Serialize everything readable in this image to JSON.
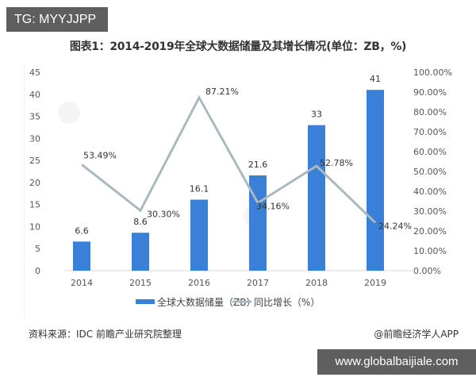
{
  "badges": {
    "top_left": "TG: MYYJJPP",
    "bottom_right": "www.globalbaijiale.com"
  },
  "header": {
    "title": "图表1：2014-2019年全球大数据储量及其增长情况(单位：ZB，%)"
  },
  "footer": {
    "source": "资料来源：IDC 前瞻产业研究院整理",
    "credit": "@前瞻经济学人APP"
  },
  "colors": {
    "bar": "#3a7fd8",
    "line": "#a9b9bd",
    "badge_bg": "#5f5f5f"
  },
  "chart_data": {
    "type": "bar+line",
    "title": "图表1：2014-2019年全球大数据储量及其增长情况(单位：ZB，%)",
    "categories": [
      "2014",
      "2015",
      "2016",
      "2017",
      "2018",
      "2019"
    ],
    "series": [
      {
        "name": "全球大数据储量（ZB）",
        "type": "bar",
        "axis": "left",
        "values": [
          6.6,
          8.6,
          16.1,
          21.6,
          33,
          41
        ],
        "labels": [
          "6.6",
          "8.6",
          "16.1",
          "21.6",
          "33",
          "41"
        ]
      },
      {
        "name": "同比增长（%）",
        "type": "line",
        "axis": "right",
        "values": [
          53.49,
          30.3,
          87.21,
          34.16,
          52.78,
          24.24
        ],
        "labels": [
          "53.49%",
          "30.30%",
          "87.21%",
          "34.16%",
          "52.78%",
          "24.24%"
        ]
      }
    ],
    "left_axis": {
      "ylim": [
        0,
        45
      ],
      "ticks": [
        "0",
        "5",
        "10",
        "15",
        "20",
        "25",
        "30",
        "35",
        "40",
        "45"
      ]
    },
    "right_axis": {
      "ylim": [
        0,
        100
      ],
      "ticks": [
        "0.00%",
        "10.00%",
        "20.00%",
        "30.00%",
        "40.00%",
        "50.00%",
        "60.00%",
        "70.00%",
        "80.00%",
        "90.00%",
        "100.00%"
      ]
    },
    "legend": {
      "position": "bottom",
      "entries": [
        "全球大数据储量（ZB）",
        "同比增长（%）"
      ]
    },
    "grid": false,
    "watermark": "前瞻产业研究院"
  }
}
